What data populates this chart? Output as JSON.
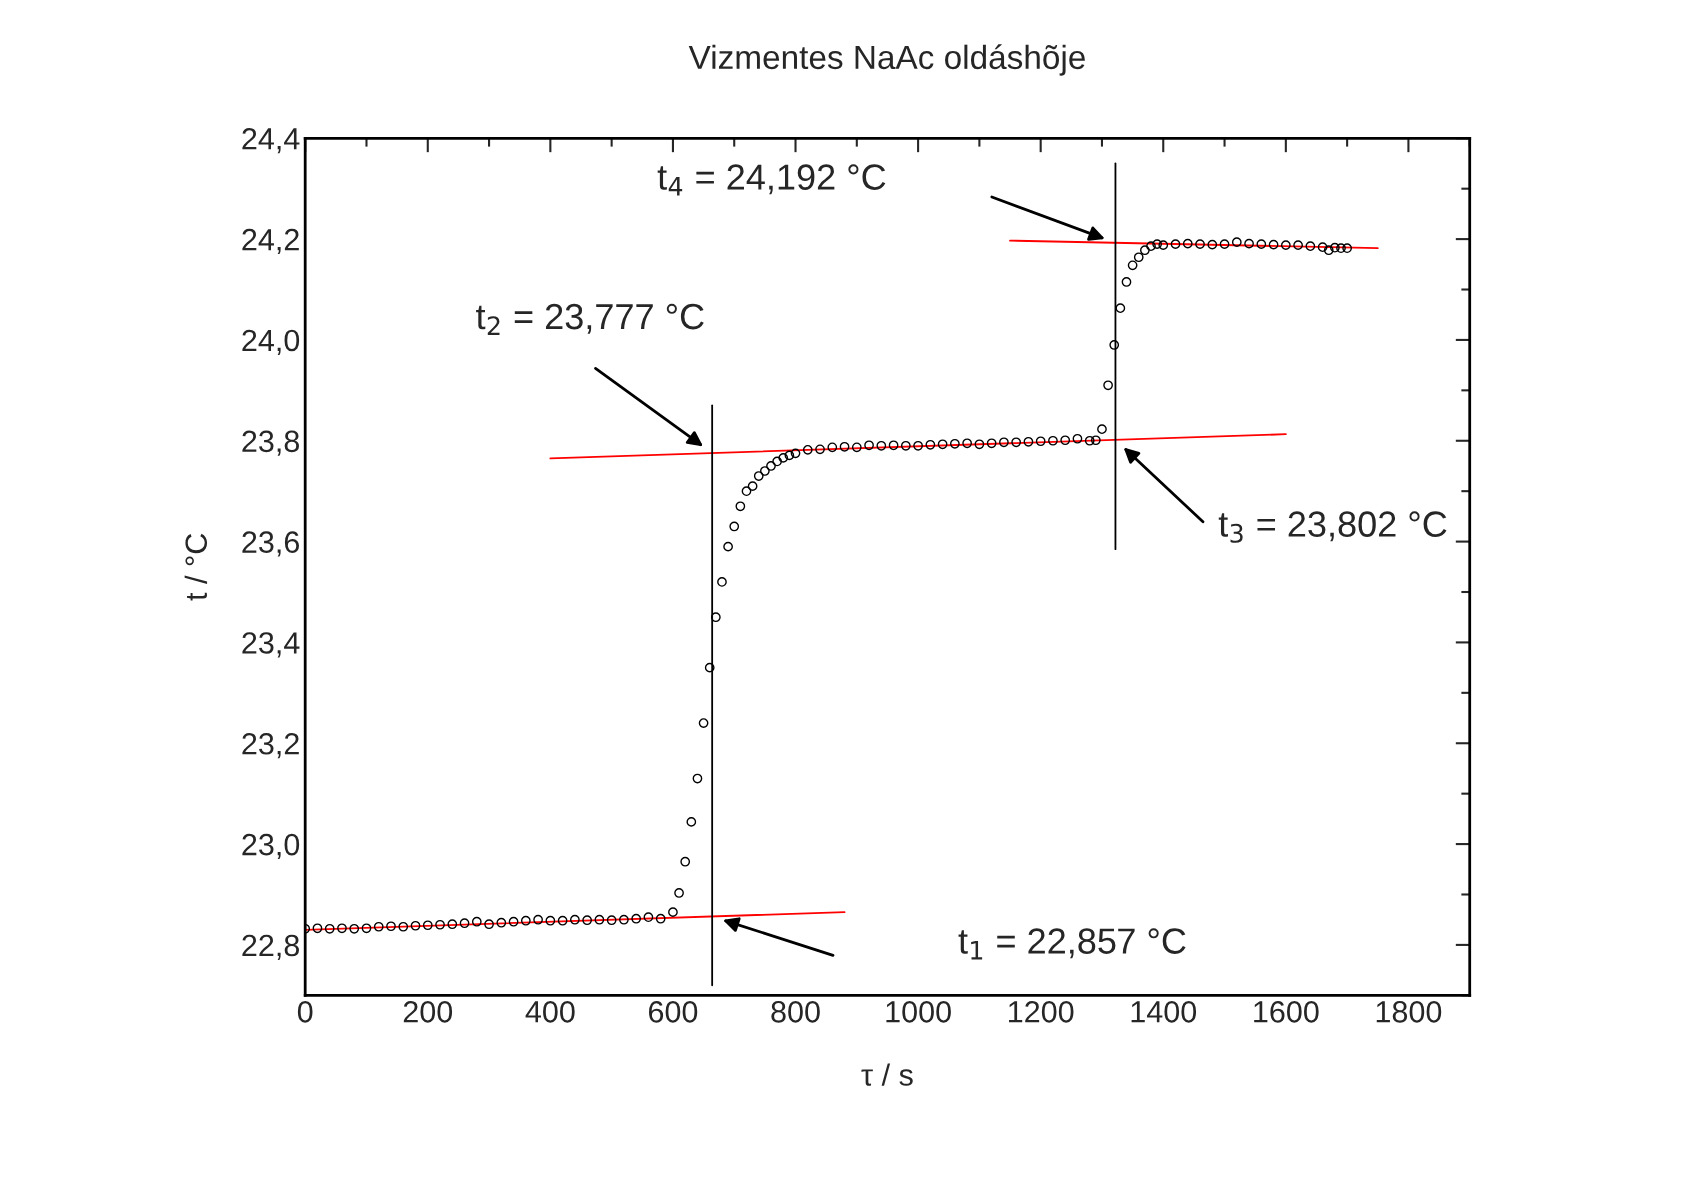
{
  "chart_data": {
    "type": "scatter",
    "title": "Vizmentes NaAc oldáshõje",
    "xlabel": "τ / s",
    "ylabel": "t / °C",
    "xlim": [
      0,
      1900
    ],
    "ylim": [
      22.7,
      24.4
    ],
    "xticks": [
      0,
      200,
      400,
      600,
      800,
      1000,
      1200,
      1400,
      1600,
      1800
    ],
    "yticks": [
      {
        "value": 22.8,
        "label": "22,8"
      },
      {
        "value": 23.0,
        "label": "23,0"
      },
      {
        "value": 23.2,
        "label": "23,2"
      },
      {
        "value": 23.4,
        "label": "23,4"
      },
      {
        "value": 23.6,
        "label": "23,6"
      },
      {
        "value": 23.8,
        "label": "23,8"
      },
      {
        "value": 24.0,
        "label": "24,0"
      },
      {
        "value": 24.2,
        "label": "24,2"
      },
      {
        "value": 24.4,
        "label": "24,4"
      }
    ],
    "grid": false,
    "legend": false,
    "series": [
      {
        "marker": "circle",
        "color": "#000000",
        "x": [
          0,
          20,
          40,
          60,
          80,
          100,
          120,
          140,
          160,
          180,
          200,
          220,
          240,
          260,
          280,
          300,
          320,
          340,
          360,
          380,
          400,
          420,
          440,
          460,
          480,
          500,
          520,
          540,
          560,
          580,
          600,
          610,
          620,
          630,
          640,
          650,
          660,
          670,
          680,
          690,
          700,
          710,
          720,
          730,
          740,
          750,
          760,
          770,
          780,
          790,
          800,
          820,
          840,
          860,
          880,
          900,
          920,
          940,
          960,
          980,
          1000,
          1020,
          1040,
          1060,
          1080,
          1100,
          1120,
          1140,
          1160,
          1180,
          1200,
          1220,
          1240,
          1260,
          1280,
          1290,
          1300,
          1310,
          1320,
          1330,
          1340,
          1350,
          1360,
          1370,
          1380,
          1390,
          1400,
          1420,
          1440,
          1460,
          1480,
          1500,
          1520,
          1540,
          1560,
          1580,
          1600,
          1620,
          1640,
          1660,
          1670,
          1680,
          1690,
          1700
        ],
        "values": [
          22.832,
          22.833,
          22.832,
          22.833,
          22.832,
          22.833,
          22.836,
          22.837,
          22.836,
          22.838,
          22.839,
          22.84,
          22.841,
          22.843,
          22.846,
          22.841,
          22.844,
          22.846,
          22.848,
          22.85,
          22.848,
          22.848,
          22.85,
          22.849,
          22.85,
          22.849,
          22.85,
          22.852,
          22.855,
          22.852,
          22.865,
          22.903,
          22.965,
          23.044,
          23.13,
          23.24,
          23.35,
          23.45,
          23.52,
          23.59,
          23.63,
          23.67,
          23.7,
          23.71,
          23.73,
          23.74,
          23.75,
          23.759,
          23.766,
          23.771,
          23.775,
          23.782,
          23.783,
          23.787,
          23.788,
          23.787,
          23.791,
          23.79,
          23.791,
          23.79,
          23.79,
          23.792,
          23.793,
          23.794,
          23.795,
          23.793,
          23.795,
          23.797,
          23.797,
          23.798,
          23.799,
          23.8,
          23.801,
          23.804,
          23.8,
          23.801,
          23.823,
          23.91,
          23.99,
          24.063,
          24.115,
          24.148,
          24.164,
          24.178,
          24.186,
          24.19,
          24.188,
          24.19,
          24.191,
          24.19,
          24.189,
          24.19,
          24.194,
          24.191,
          24.19,
          24.189,
          24.188,
          24.188,
          24.186,
          24.184,
          24.178,
          24.183,
          24.182,
          24.182
        ]
      },
      {
        "type": "line",
        "color": "#ff0000",
        "x": [
          0,
          880
        ],
        "values": [
          22.83,
          22.865
        ]
      },
      {
        "type": "line",
        "color": "#ff0000",
        "x": [
          400,
          1600
        ],
        "values": [
          23.765,
          23.813
        ]
      },
      {
        "type": "line",
        "color": "#ff0000",
        "x": [
          1150,
          1750
        ],
        "values": [
          24.197,
          24.182
        ]
      },
      {
        "type": "line",
        "color": "#000000",
        "x": [
          664,
          664
        ],
        "values": [
          22.72,
          23.87
        ]
      },
      {
        "type": "line",
        "color": "#000000",
        "x": [
          1322,
          1322
        ],
        "values": [
          23.585,
          24.35
        ]
      }
    ],
    "annotations": [
      "t$_{1}$ = 22,857 °C",
      "t$_{2}$ = 23,777 °C",
      "t$_{3}$ = 23,802 °C",
      "t$_{4}$ = 24,192 °C"
    ]
  }
}
